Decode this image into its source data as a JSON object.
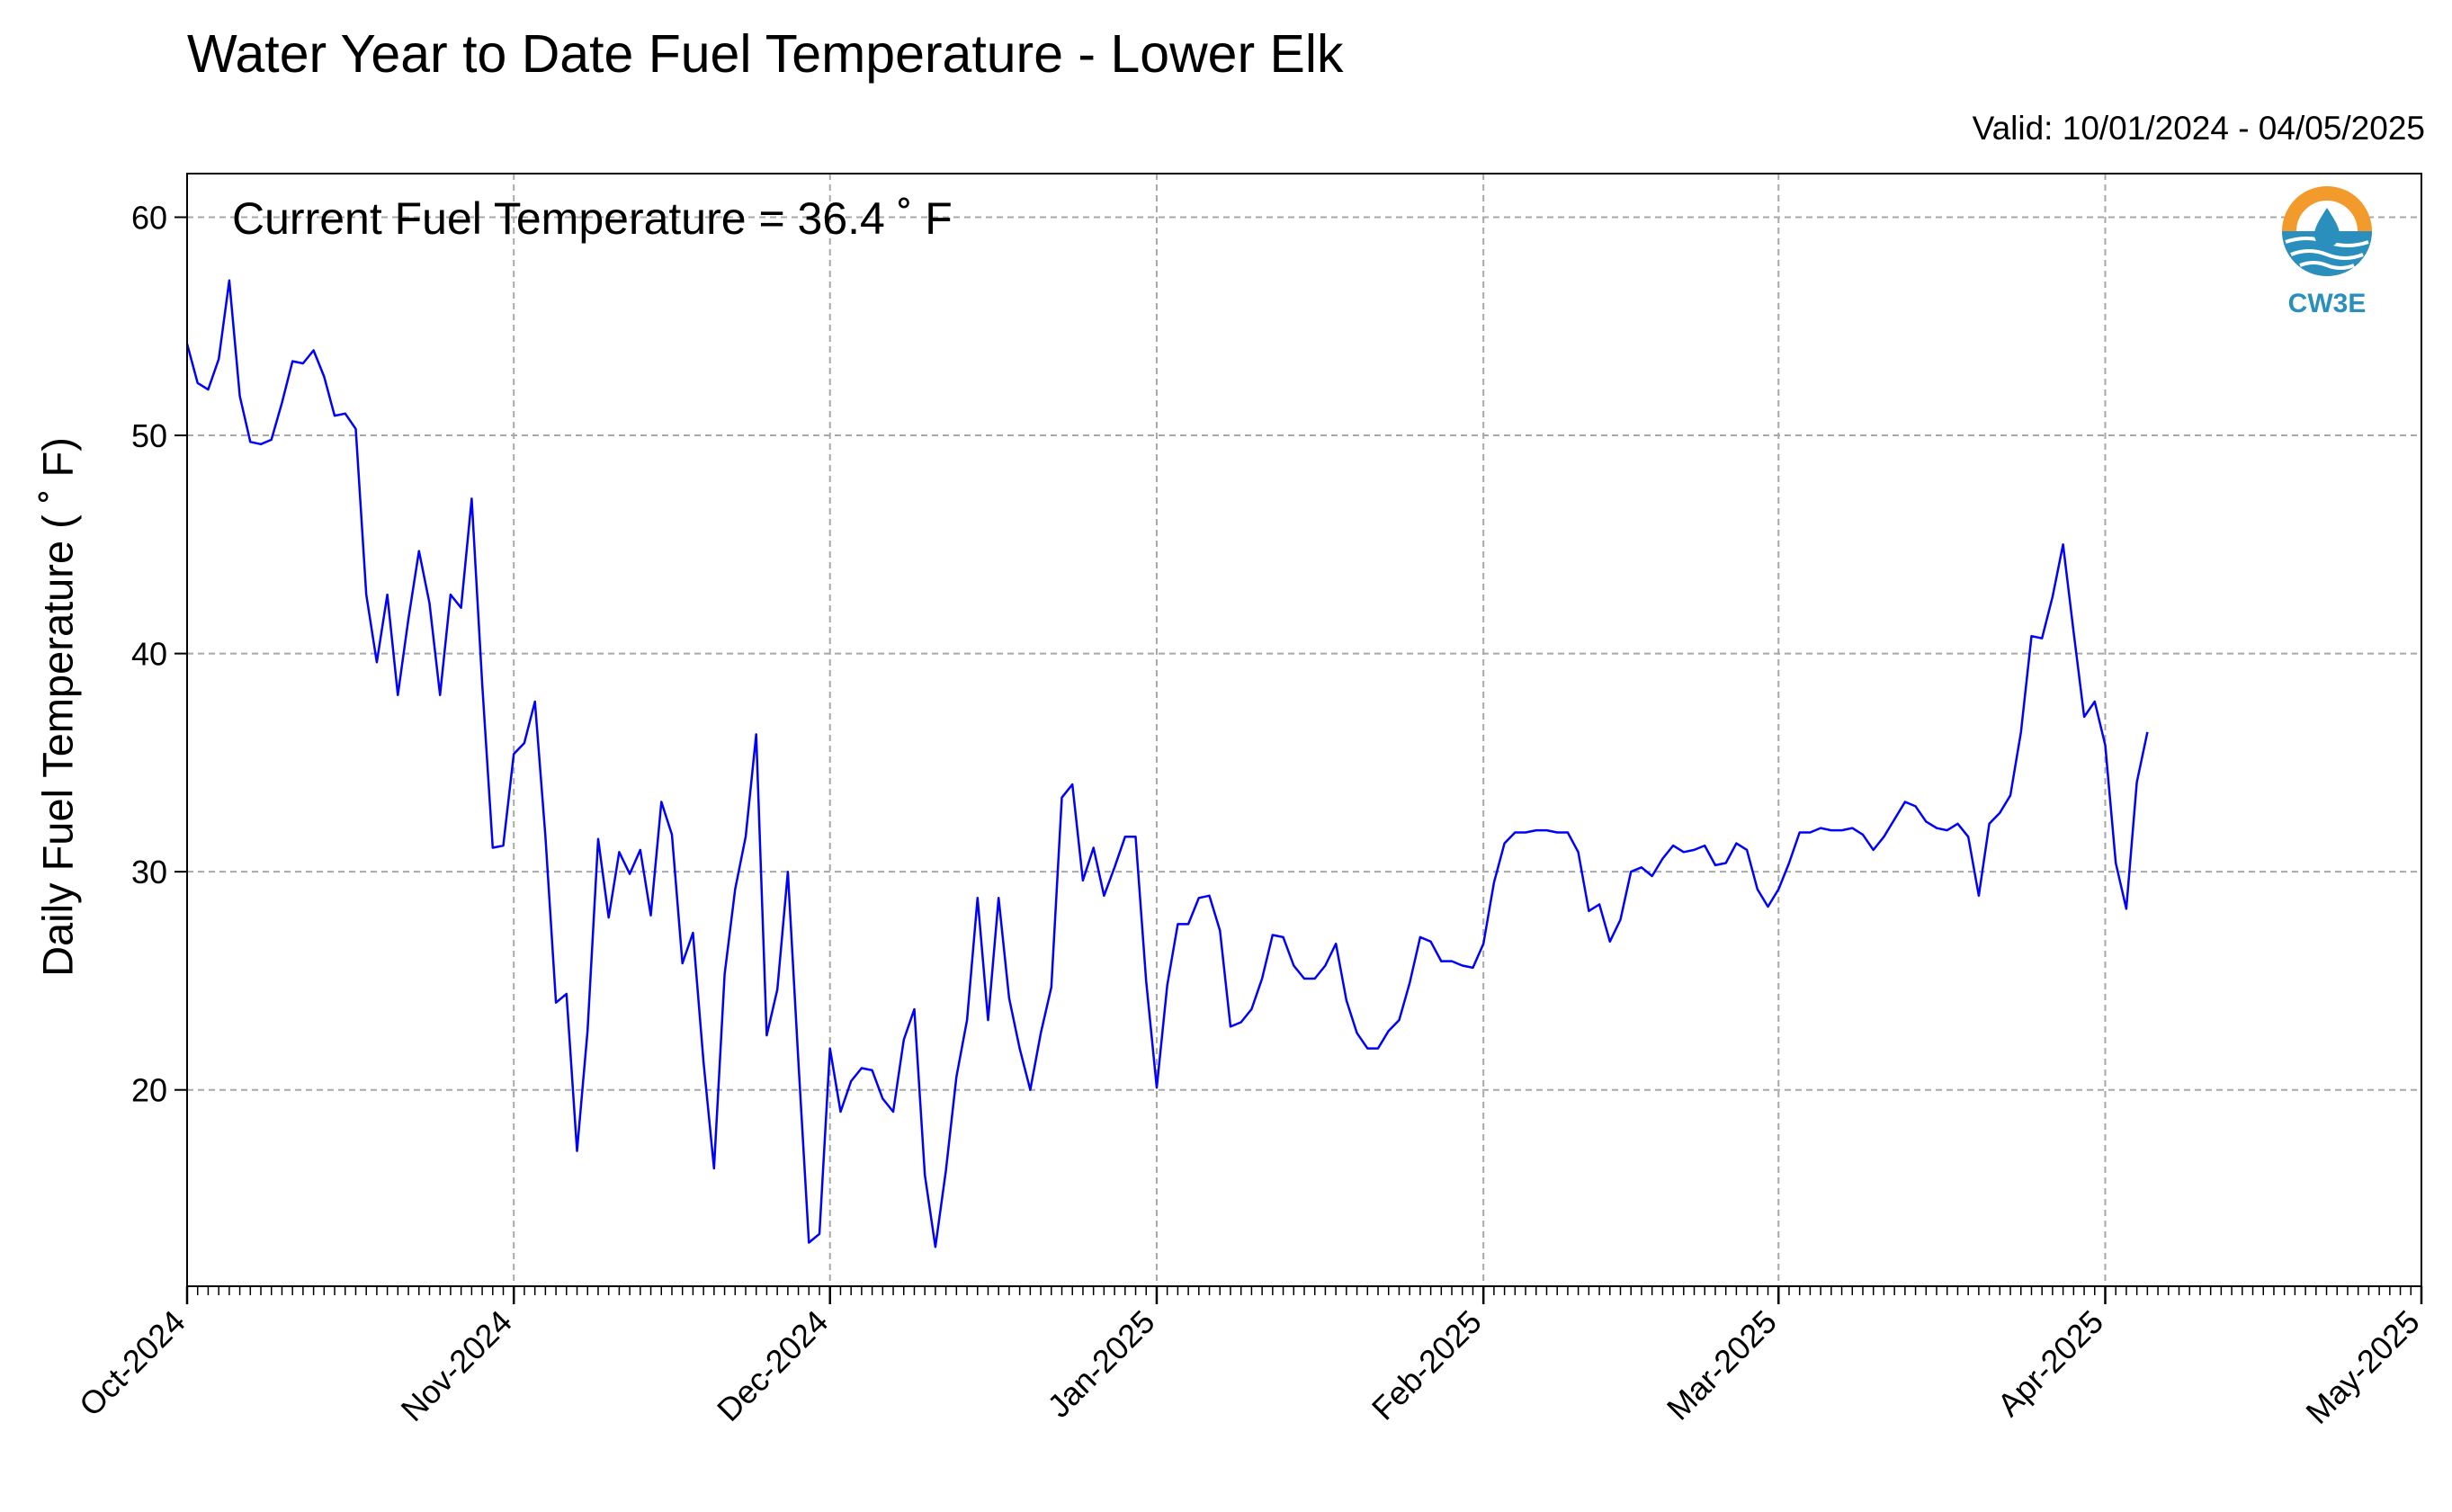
{
  "chart_data": {
    "type": "line",
    "title": "Water Year to Date Fuel Temperature - Lower Elk",
    "subtitle": "Valid: 10/01/2024 - 04/05/2025",
    "ylabel": "Daily Fuel Temperature ( ˚ F)",
    "xlabel": "",
    "annotation": "Current Fuel Temperature = 36.4 ˚ F",
    "logo_text": "CW3E",
    "ylim": [
      11,
      62
    ],
    "yticks": [
      20,
      30,
      40,
      50,
      60
    ],
    "x_start": "2024-10-01",
    "x_end": "2025-05-01",
    "xticks": [
      {
        "date": "2024-10-01",
        "label": "Oct-2024"
      },
      {
        "date": "2024-11-01",
        "label": "Nov-2024"
      },
      {
        "date": "2024-12-01",
        "label": "Dec-2024"
      },
      {
        "date": "2025-01-01",
        "label": "Jan-2025"
      },
      {
        "date": "2025-02-01",
        "label": "Feb-2025"
      },
      {
        "date": "2025-03-01",
        "label": "Mar-2025"
      },
      {
        "date": "2025-04-01",
        "label": "Apr-2025"
      },
      {
        "date": "2025-05-01",
        "label": "May-2025"
      }
    ],
    "grid": true,
    "line_color": "#0000ff",
    "series": [
      {
        "start_date": "2024-10-01",
        "values": [
          54.2,
          52.4,
          52.1,
          53.5,
          57.1,
          51.8,
          49.7,
          49.6,
          49.8,
          51.5,
          53.4,
          53.3,
          53.9,
          52.7,
          50.9,
          51.0,
          50.3,
          42.7,
          39.6,
          42.7,
          38.1,
          41.6,
          44.7,
          42.3,
          38.1,
          42.7,
          42.1,
          47.1,
          38.6,
          31.1,
          31.2,
          35.4,
          35.9,
          37.8,
          31.6,
          24.0,
          24.4,
          17.2,
          22.7,
          31.5,
          27.9,
          30.9,
          29.9,
          31.0,
          28.0,
          33.2,
          31.7,
          25.8,
          27.2,
          21.3,
          16.4,
          25.3,
          29.2,
          31.6,
          36.3,
          22.5,
          24.6,
          30.0,
          21.3,
          13.0,
          13.4,
          21.9,
          19.0,
          20.4,
          21.0,
          20.9,
          19.6,
          19.0,
          22.3,
          23.7,
          16.1,
          12.8,
          16.3,
          20.6,
          23.2,
          28.8,
          23.2,
          28.8,
          24.2,
          21.9,
          20.0,
          22.6,
          24.7,
          33.4,
          34.0,
          29.6,
          31.1,
          28.9,
          30.2,
          31.6,
          31.6,
          25.0,
          20.1,
          24.8,
          27.6,
          27.6,
          28.8,
          28.9,
          27.3,
          22.9,
          23.1,
          23.7,
          25.1,
          27.1,
          27.0,
          25.7,
          25.1,
          25.1,
          25.7,
          26.7,
          24.1,
          22.6,
          21.9,
          21.9,
          22.7,
          23.2,
          24.9,
          27.0,
          26.8,
          25.9,
          25.9,
          25.7,
          25.6,
          26.7,
          29.5,
          31.3,
          31.8,
          31.8,
          31.9,
          31.9,
          31.8,
          31.8,
          30.9,
          28.2,
          28.5,
          26.8,
          27.8,
          30.0,
          30.2,
          29.8,
          30.6,
          31.2,
          30.9,
          31.0,
          31.2,
          30.3,
          30.4,
          31.3,
          31.0,
          29.2,
          28.4,
          29.2,
          30.4,
          31.8,
          31.8,
          32.0,
          31.9,
          31.9,
          32.0,
          31.7,
          31.0,
          31.6,
          32.4,
          33.2,
          33.0,
          32.3,
          32.0,
          31.9,
          32.2,
          31.6,
          28.9,
          32.2,
          32.7,
          33.5,
          36.4,
          40.8,
          40.7,
          42.6,
          45.0,
          41.0,
          37.1,
          37.8,
          35.8,
          30.4,
          28.3,
          34.1,
          36.4
        ]
      }
    ]
  }
}
